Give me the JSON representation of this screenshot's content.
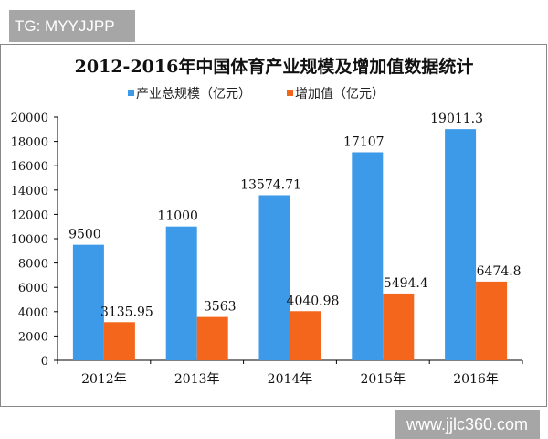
{
  "watermark_top": "TG: MYYJJPP",
  "watermark_bottom": "www.jjlc360.com",
  "chart_data": {
    "type": "bar",
    "title": "2012-2016年中国体育产业规模及增加值数据统计",
    "categories": [
      "2012年",
      "2013年",
      "2014年",
      "2015年",
      "2016年"
    ],
    "series": [
      {
        "name": "产业总规模（亿元）",
        "color": "#3d9ae8",
        "values": [
          9500,
          11000,
          13574.71,
          17107,
          19011.3
        ],
        "labels": [
          "9500",
          "11000",
          "13574.71",
          "17107",
          "19011.3"
        ]
      },
      {
        "name": "增加值（亿元）",
        "color": "#f4661b",
        "values": [
          3135.95,
          3563,
          4040.98,
          5494.4,
          6474.8
        ],
        "labels": [
          "3135.95",
          "3563",
          "4040.98",
          "5494.4",
          "6474.8"
        ]
      }
    ],
    "ylim": [
      0,
      20000
    ],
    "yticks": [
      "0",
      "2000",
      "4000",
      "6000",
      "8000",
      "10000",
      "12000",
      "14000",
      "16000",
      "18000",
      "20000"
    ],
    "grid": false,
    "legend": "top"
  }
}
